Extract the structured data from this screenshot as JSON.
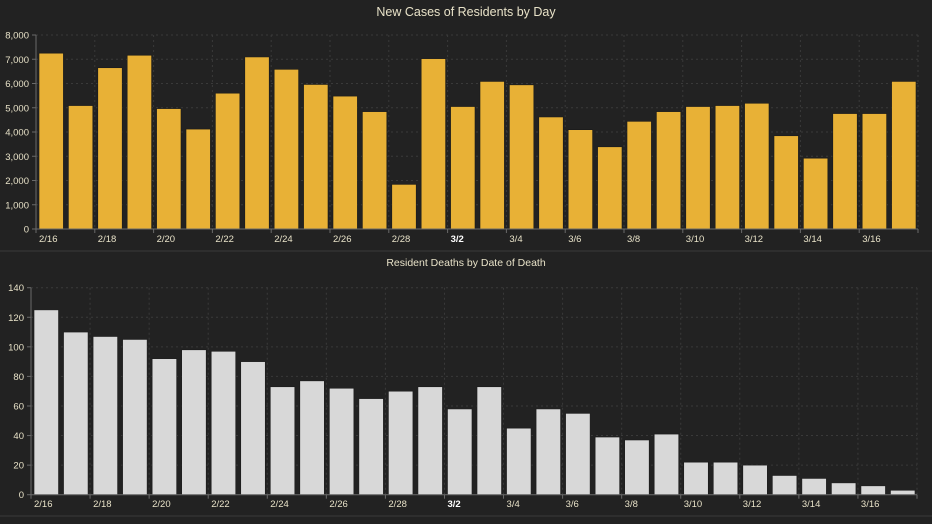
{
  "colors": {
    "background": "#222222",
    "cases_bar": "#E8B136",
    "deaths_bar": "#D8D8D8",
    "bar_outline": "#1a1a1a",
    "title_text": "#E8E2C8",
    "tick_text": "#E8E2C8",
    "axis_line": "#6a6a6a",
    "grid_line": "#3a3a3a",
    "divider": "#3a3a3a"
  },
  "chart_data": [
    {
      "id": "cases",
      "type": "bar",
      "title": "New Cases of Residents by Day",
      "xlabel": "",
      "ylabel": "",
      "ylim": [
        0,
        8000
      ],
      "yticks": [
        0,
        1000,
        2000,
        3000,
        4000,
        5000,
        6000,
        7000,
        8000
      ],
      "ytick_labels": [
        "0",
        "1,000",
        "2,000",
        "3,000",
        "4,000",
        "5,000",
        "6,000",
        "7,000",
        "8,000"
      ],
      "grid": true,
      "categories": [
        "2/16",
        "2/17",
        "2/18",
        "2/19",
        "2/20",
        "2/21",
        "2/22",
        "2/23",
        "2/24",
        "2/25",
        "2/26",
        "2/27",
        "2/28",
        "3/1",
        "3/2",
        "3/3",
        "3/4",
        "3/5",
        "3/6",
        "3/7",
        "3/8",
        "3/9",
        "3/10",
        "3/11",
        "3/12",
        "3/13",
        "3/14",
        "3/15",
        "3/16",
        "3/17"
      ],
      "xtick_labels": [
        "2/16",
        "2/18",
        "2/20",
        "2/22",
        "2/24",
        "2/26",
        "2/28",
        "3/2",
        "3/4",
        "3/6",
        "3/8",
        "3/10",
        "3/12",
        "3/14",
        "3/16"
      ],
      "emphasized_tick": "3/2",
      "values": [
        7250,
        5090,
        6650,
        7165,
        4965,
        4120,
        5600,
        7095,
        6585,
        5960,
        5480,
        4840,
        1840,
        7025,
        5050,
        6085,
        5945,
        4620,
        4095,
        3390,
        4440,
        4840,
        5050,
        5090,
        5185,
        3845,
        2920,
        4760,
        4760,
        6085
      ]
    },
    {
      "id": "deaths",
      "type": "bar",
      "title": "Resident Deaths by Date of Death",
      "xlabel": "",
      "ylabel": "",
      "ylim": [
        0,
        140
      ],
      "yticks": [
        0,
        20,
        40,
        60,
        80,
        100,
        120,
        140
      ],
      "ytick_labels": [
        "0",
        "20",
        "40",
        "60",
        "80",
        "100",
        "120",
        "140"
      ],
      "grid": true,
      "categories": [
        "2/16",
        "2/17",
        "2/18",
        "2/19",
        "2/20",
        "2/21",
        "2/22",
        "2/23",
        "2/24",
        "2/25",
        "2/26",
        "2/27",
        "2/28",
        "3/1",
        "3/2",
        "3/3",
        "3/4",
        "3/5",
        "3/6",
        "3/7",
        "3/8",
        "3/9",
        "3/10",
        "3/11",
        "3/12",
        "3/13",
        "3/14",
        "3/15",
        "3/16",
        "3/17"
      ],
      "xtick_labels": [
        "2/16",
        "2/18",
        "2/20",
        "2/22",
        "2/24",
        "2/26",
        "2/28",
        "3/2",
        "3/4",
        "3/6",
        "3/8",
        "3/10",
        "3/12",
        "3/14",
        "3/16"
      ],
      "emphasized_tick": "3/2",
      "values": [
        125,
        110,
        107,
        105,
        92,
        98,
        97,
        90,
        73,
        77,
        72,
        65,
        70,
        73,
        58,
        73,
        45,
        58,
        55,
        39,
        37,
        41,
        22,
        22,
        20,
        13,
        11,
        8,
        6,
        3
      ]
    }
  ]
}
